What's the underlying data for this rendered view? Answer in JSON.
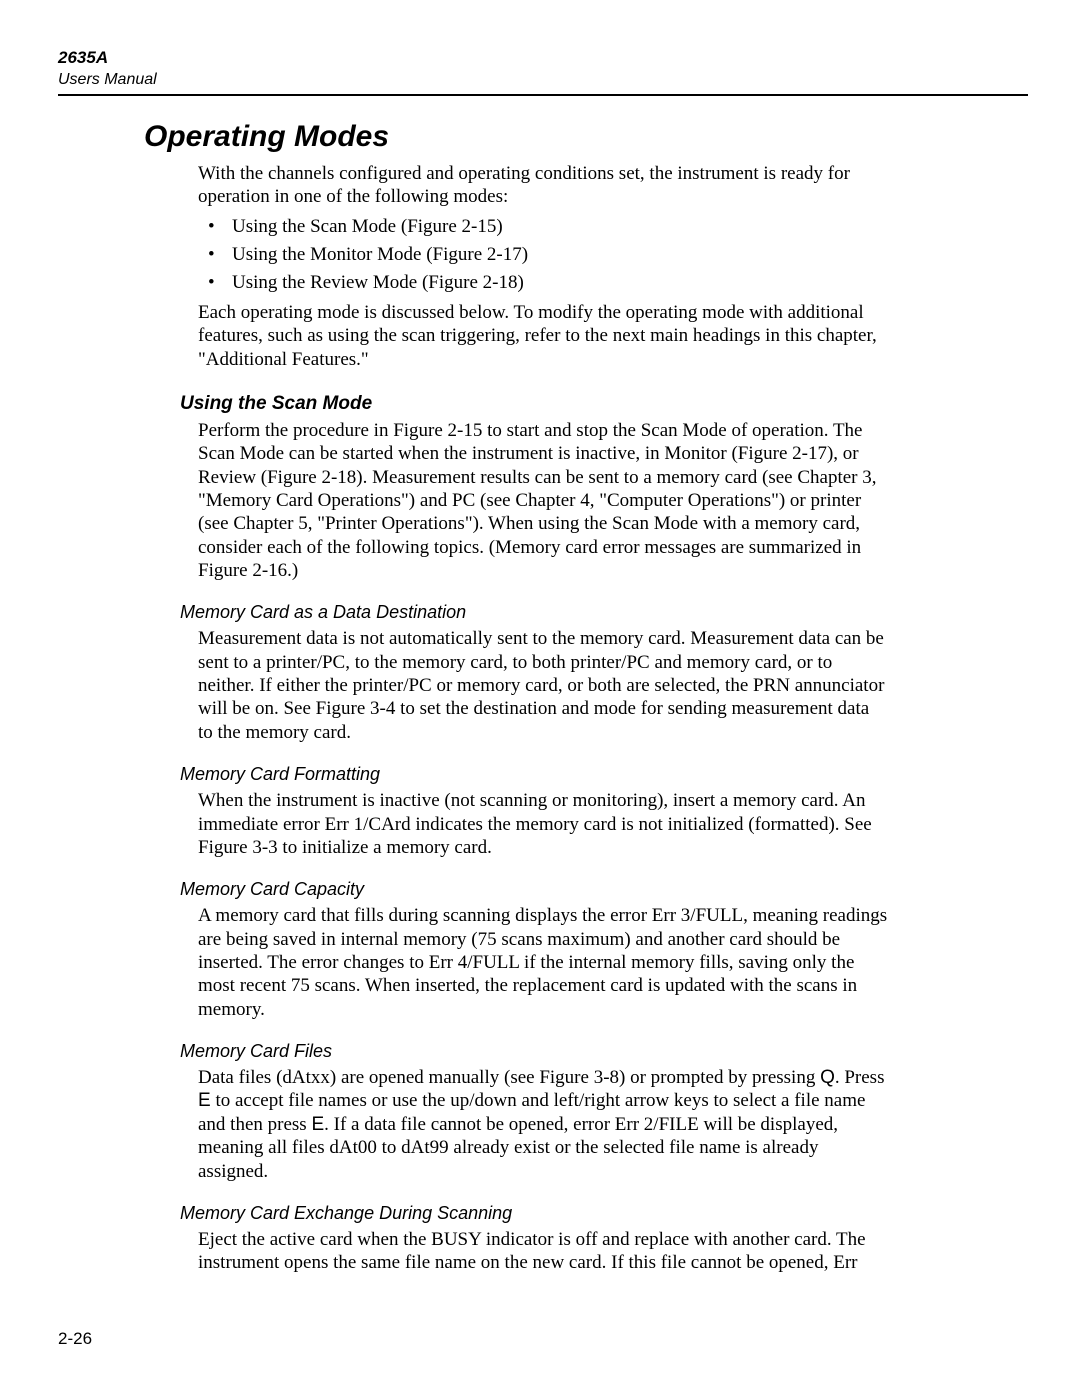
{
  "runningHead": {
    "model": "2635A",
    "subtitle": "Users Manual"
  },
  "pageNumber": "2-26",
  "h1": "Operating Modes",
  "intro1": "With the channels configured and operating conditions set, the instrument is ready for operation in one of the following modes:",
  "bullets": {
    "b1": "Using the Scan Mode (Figure 2-15)",
    "b2": "Using the Monitor Mode (Figure 2-17)",
    "b3": "Using the Review Mode (Figure 2-18)"
  },
  "intro2": "Each operating mode is discussed below. To modify the operating mode with additional features, such as using the scan triggering, refer to the next main headings in this chapter, \"Additional Features.\"",
  "scan": {
    "title": "Using the Scan Mode",
    "p1": "Perform the procedure in Figure 2-15 to start and stop the Scan Mode of operation. The Scan Mode can be started when the instrument is inactive, in Monitor (Figure 2-17), or Review (Figure 2-18). Measurement results can be sent to a memory card (see Chapter 3, \"Memory Card Operations\") and PC (see Chapter 4, \"Computer Operations\") or printer (see Chapter 5, \"Printer Operations\"). When using the Scan Mode with a memory card, consider each of the following topics. (Memory card error messages are summarized in Figure 2-16.)"
  },
  "dest": {
    "title": "Memory Card as a Data Destination",
    "p1": "Measurement data is not automatically sent to the memory card. Measurement data can be sent to a printer/PC, to the memory card, to both printer/PC and memory card, or to neither. If either the printer/PC or memory card, or both are selected, the PRN annunciator will be on. See Figure 3-4 to set the destination and mode for sending measurement data to the memory card."
  },
  "fmt": {
    "title": "Memory Card Formatting",
    "p1": "When the instrument is inactive (not scanning or monitoring), insert a memory card. An immediate error Err 1/CArd indicates the memory card is not initialized (formatted). See Figure 3-3 to initialize a memory card."
  },
  "cap": {
    "title": "Memory Card Capacity",
    "p1": "A memory card that fills during scanning displays the error Err 3/FULL, meaning readings are being saved in internal memory (75 scans maximum) and another card should be inserted. The error changes to Err 4/FULL if the internal memory fills, saving only the most recent 75 scans. When inserted, the replacement card is updated with the scans in memory."
  },
  "files": {
    "title": "Memory Card Files",
    "pre1": "Data files (dAtxx) are opened manually (see Figure 3-8) or prompted by pressing ",
    "keyQ": "Q",
    "post1": ". Press ",
    "keyE1": "E",
    "mid": " to accept file names or use the up/down and left/right arrow keys to select a file name and then press ",
    "keyE2": "E",
    "post2": ". If a data file cannot be opened, error Err 2/FILE will be displayed, meaning all files dAt00 to dAt99 already exist or the selected file name is already assigned."
  },
  "xchg": {
    "title": "Memory Card Exchange During Scanning",
    "p1": "Eject the active card when the BUSY indicator is off and replace with another card. The instrument opens the same file name on the new card. If this file cannot be opened, Err"
  }
}
